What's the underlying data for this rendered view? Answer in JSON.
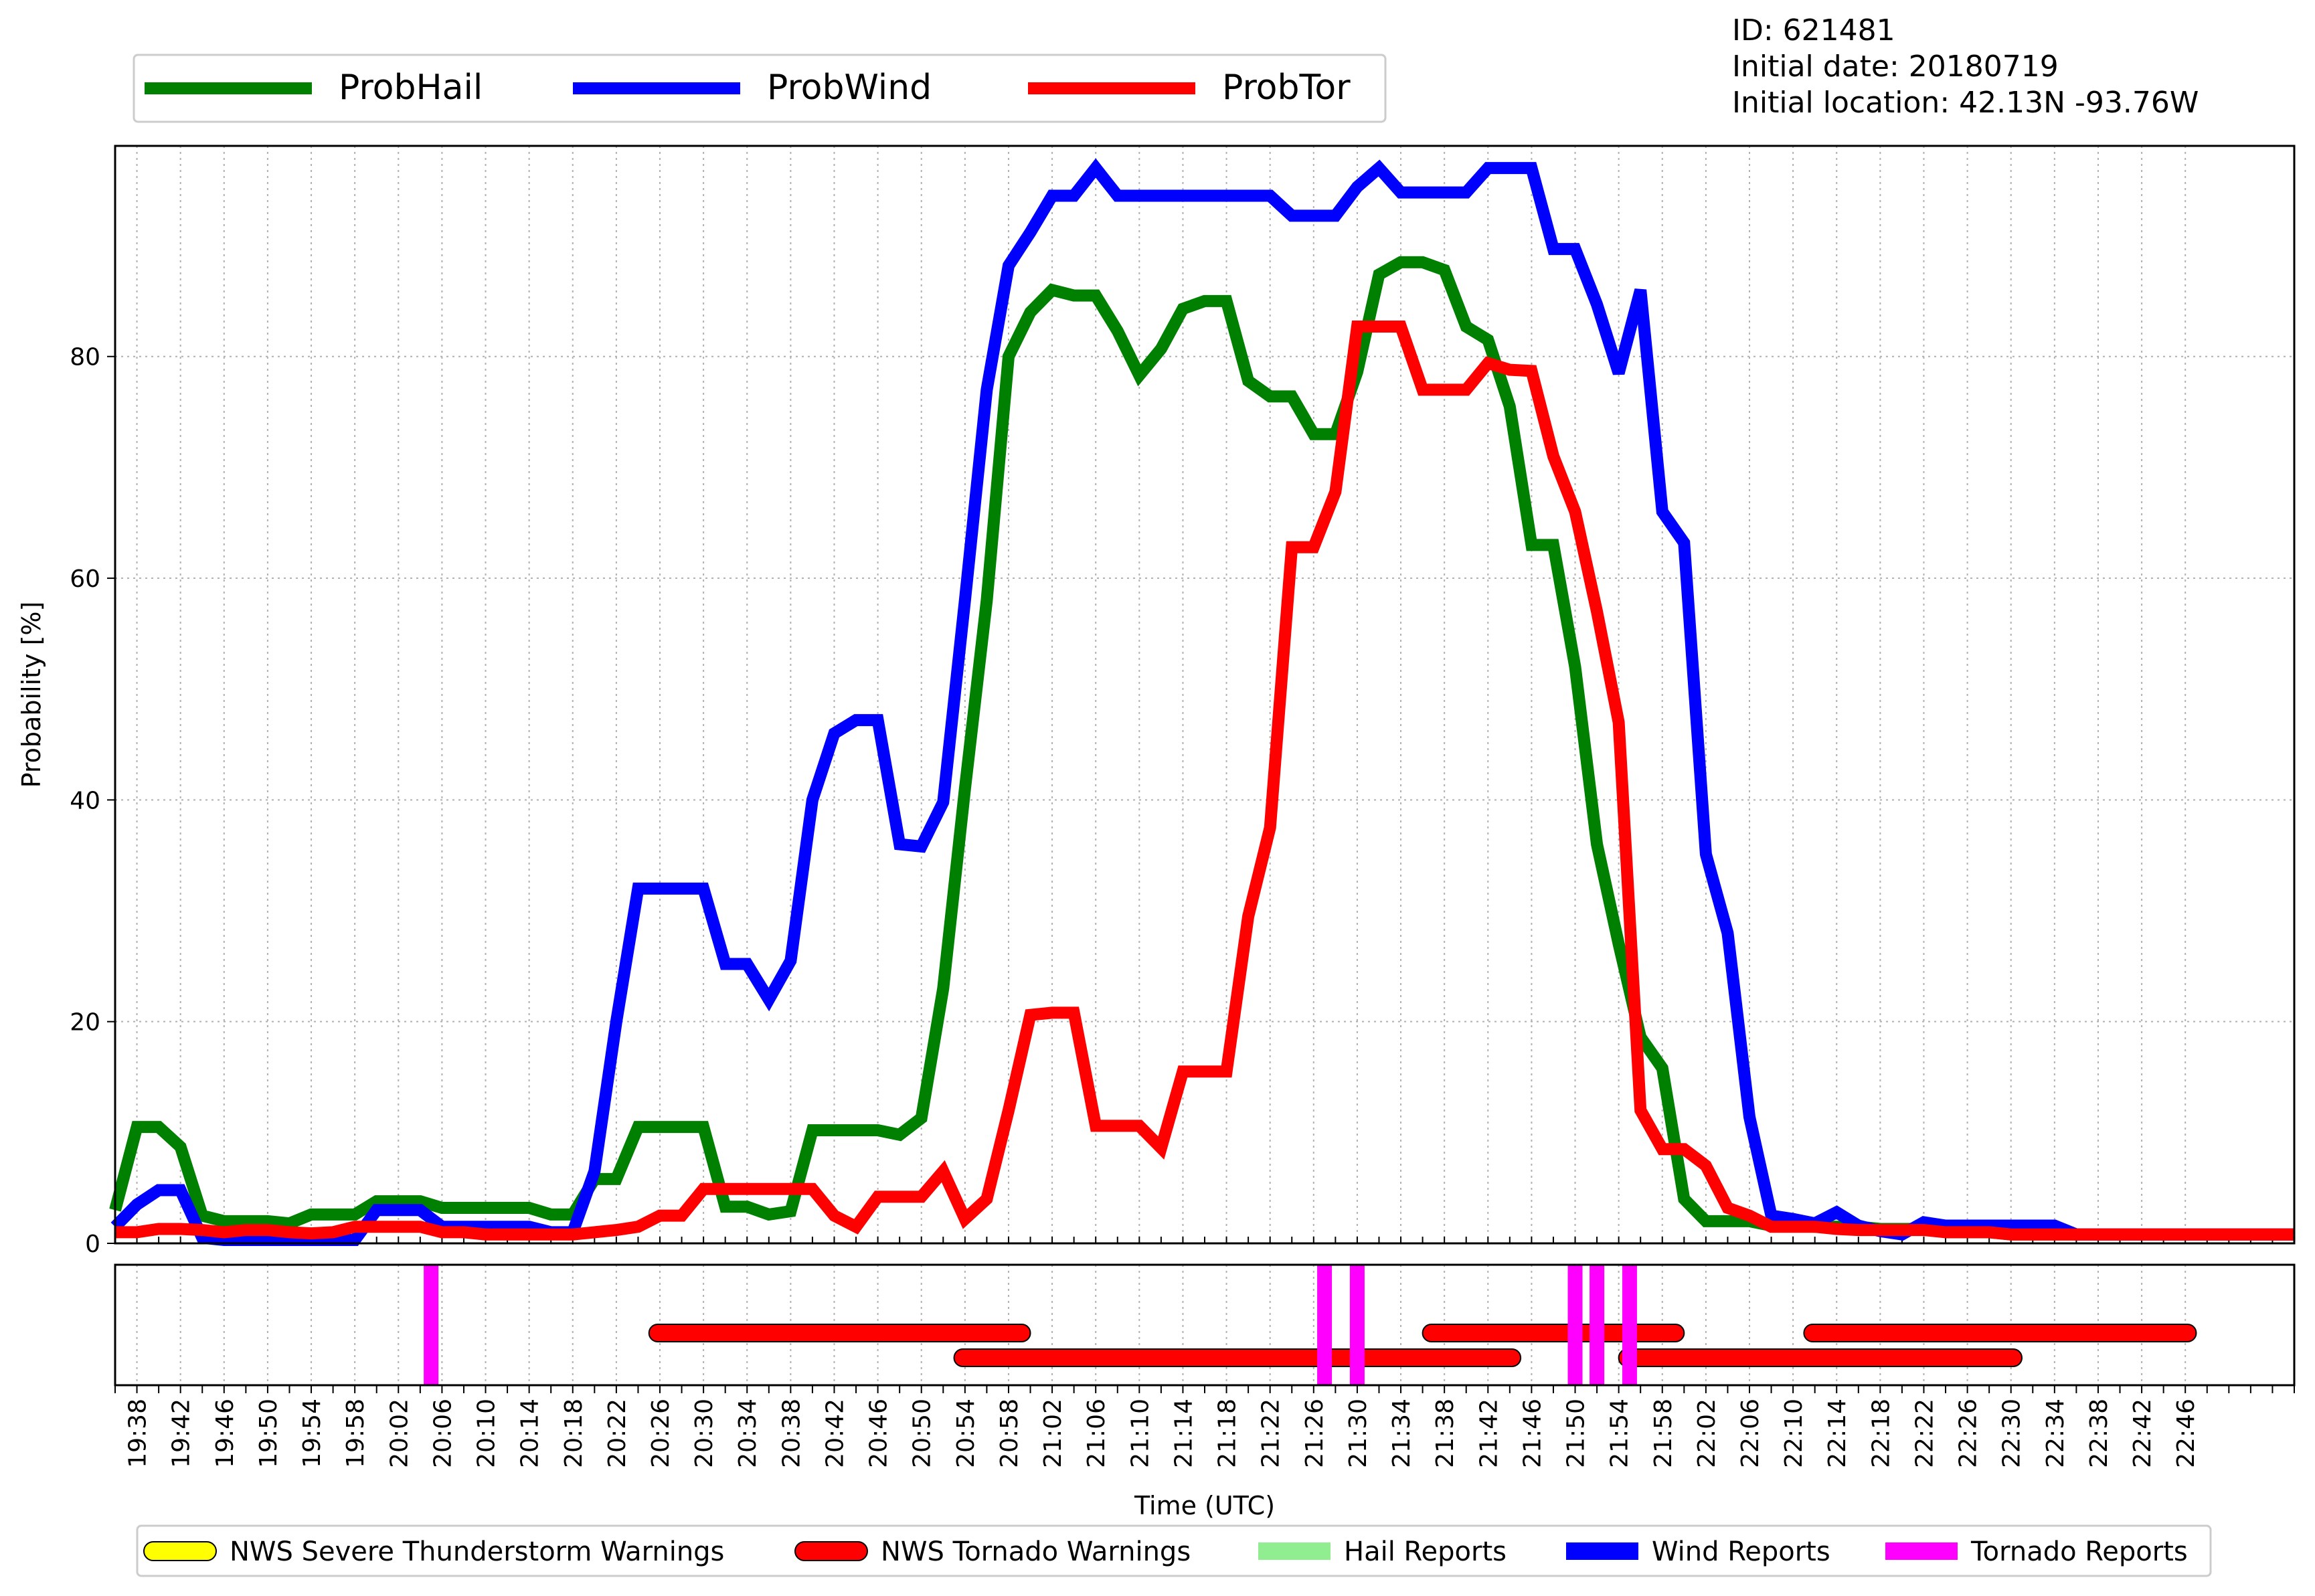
{
  "info": {
    "id": "ID: 621481",
    "initial_date": "Initial date: 20180719",
    "initial_location": "Initial location: 42.13N -93.76W"
  },
  "chart_data": {
    "type": "line",
    "title": "",
    "xlabel": "Time (UTC)",
    "ylabel": "Probability [%]",
    "ylim": [
      0,
      99
    ],
    "yticks": [
      0,
      20,
      40,
      60,
      80
    ],
    "grid": true,
    "legend_top": "top-left",
    "start_time": "19:36",
    "step_minutes": 2,
    "x_tick_labels": [
      "19:38",
      "19:42",
      "19:46",
      "19:50",
      "19:54",
      "19:58",
      "20:02",
      "20:06",
      "20:10",
      "20:14",
      "20:18",
      "20:22",
      "20:26",
      "20:30",
      "20:34",
      "20:38",
      "20:42",
      "20:46",
      "20:50",
      "20:54",
      "20:58",
      "21:02",
      "21:06",
      "21:10",
      "21:14",
      "21:18",
      "21:22",
      "21:26",
      "21:30",
      "21:34",
      "21:38",
      "21:42",
      "21:46",
      "21:50",
      "21:54",
      "21:58",
      "22:02",
      "22:06",
      "22:10",
      "22:14",
      "22:18",
      "22:22",
      "22:26",
      "22:30",
      "22:34",
      "22:38",
      "22:42",
      "22:46"
    ],
    "series": [
      {
        "name": "ProbHail",
        "color": "#008000",
        "values": [
          3,
          10.5,
          10.5,
          8.7,
          2.5,
          2,
          2,
          2,
          1.8,
          2.6,
          2.6,
          2.6,
          3.8,
          3.8,
          3.8,
          3.2,
          3.2,
          3.2,
          3.2,
          3.2,
          2.6,
          2.6,
          5.8,
          5.8,
          10.5,
          10.5,
          10.5,
          10.5,
          3.3,
          3.3,
          2.6,
          2.9,
          10.2,
          10.2,
          10.2,
          10.2,
          9.8,
          11.3,
          23,
          41,
          58,
          80,
          84,
          86,
          85.5,
          85.5,
          82.3,
          78.3,
          80.7,
          84.3,
          85,
          85,
          77.8,
          76.4,
          76.4,
          73,
          73,
          78.6,
          87.4,
          88.5,
          88.5,
          87.8,
          82.7,
          81.5,
          75.5,
          63,
          63,
          52,
          36,
          27,
          18.6,
          15.8,
          4,
          2,
          2,
          2,
          1.6,
          1.6,
          1.5,
          1.5,
          1.5,
          1.3,
          1.3,
          1.3,
          1,
          1,
          1,
          0.8,
          0.8,
          0.8,
          0.8,
          0.8,
          0.8,
          0.8,
          0.8,
          0.8,
          0.8,
          0.8,
          0.8,
          0.8,
          0.8
        ]
      },
      {
        "name": "ProbWind",
        "color": "#0000ff",
        "values": [
          1.5,
          3.5,
          4.8,
          4.8,
          0.5,
          0.3,
          0.3,
          0.3,
          0.3,
          0.3,
          0.3,
          0.3,
          3,
          3,
          3,
          1.5,
          1.5,
          1.5,
          1.5,
          1.5,
          1,
          1,
          6.5,
          20,
          32,
          32,
          32,
          32,
          25.2,
          25.2,
          22,
          25.5,
          40,
          46,
          47.2,
          47.2,
          36,
          35.8,
          39.8,
          58,
          77,
          88.2,
          91.2,
          94.5,
          94.5,
          97,
          94.5,
          94.5,
          94.5,
          94.5,
          94.5,
          94.5,
          94.5,
          94.5,
          92.7,
          92.7,
          92.7,
          95.3,
          97,
          94.8,
          94.8,
          94.8,
          94.8,
          97,
          97,
          97,
          89.7,
          89.7,
          84.7,
          78.5,
          86,
          66,
          63.2,
          35.1,
          28,
          11.4,
          2.5,
          2.2,
          1.8,
          2.8,
          1.6,
          1.1,
          0.8,
          1.9,
          1.6,
          1.6,
          1.6,
          1.6,
          1.6,
          1.6,
          0.8,
          0.8,
          0.8,
          0.8,
          0.8,
          0.8,
          0.8,
          0.8,
          0.8,
          0.8,
          0.8
        ]
      },
      {
        "name": "ProbTor",
        "color": "#ff0000",
        "values": [
          1,
          1,
          1.3,
          1.3,
          1.2,
          1,
          1.2,
          1.2,
          1,
          0.9,
          1,
          1.5,
          1.5,
          1.5,
          1.5,
          1,
          1,
          0.8,
          0.8,
          0.8,
          0.8,
          0.8,
          1,
          1.2,
          1.5,
          2.5,
          2.5,
          4.9,
          4.9,
          4.9,
          4.9,
          4.9,
          4.9,
          2.5,
          1.5,
          4.2,
          4.2,
          4.2,
          6.5,
          2.2,
          4,
          12,
          20.6,
          20.8,
          20.8,
          10.6,
          10.6,
          10.6,
          8.6,
          15.5,
          15.5,
          15.5,
          29.5,
          37.5,
          62.8,
          62.8,
          67.8,
          82.7,
          82.7,
          82.7,
          77,
          77,
          77,
          79.4,
          78.8,
          78.7,
          71,
          66,
          57,
          47,
          12,
          8.5,
          8.5,
          7,
          3.2,
          2.5,
          1.5,
          1.5,
          1.5,
          1.3,
          1.2,
          1.2,
          1.2,
          1.2,
          1,
          1,
          1,
          0.8,
          0.8,
          0.8,
          0.8,
          0.8,
          0.8,
          0.8,
          0.8,
          0.8,
          0.8,
          0.8,
          0.8,
          0.8,
          0.8
        ]
      }
    ],
    "tornado_reports": [
      "20:05",
      "21:27",
      "21:30",
      "21:50",
      "21:52",
      "21:55"
    ],
    "tornado_warnings": [
      {
        "start": "20:25",
        "end": "21:00"
      },
      {
        "start": "20:53",
        "end": "21:45"
      },
      {
        "start": "21:36",
        "end": "22:00"
      },
      {
        "start": "21:54",
        "end": "22:31"
      },
      {
        "start": "22:11",
        "end": "22:47"
      }
    ],
    "legend_bottom": [
      {
        "label": "NWS Severe Thunderstorm Warnings",
        "color": "#ffff00",
        "shape": "capsule"
      },
      {
        "label": "NWS Tornado Warnings",
        "color": "#ff0000",
        "shape": "capsule"
      },
      {
        "label": "Hail Reports",
        "color": "#90ee90",
        "shape": "bar"
      },
      {
        "label": "Wind Reports",
        "color": "#0000ff",
        "shape": "bar"
      },
      {
        "label": "Tornado Reports",
        "color": "#ff00ff",
        "shape": "bar"
      }
    ]
  }
}
